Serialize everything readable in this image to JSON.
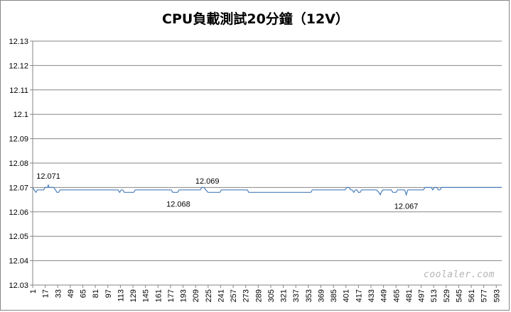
{
  "chart_data": {
    "type": "line",
    "title": "CPU負載測試20分鐘（12V）",
    "xlabel": "",
    "ylabel": "",
    "ylim": [
      12.03,
      12.13
    ],
    "yticks": [
      "12.03",
      "12.04",
      "12.05",
      "12.06",
      "12.07",
      "12.08",
      "12.09",
      "12.1",
      "12.11",
      "12.12",
      "12.13"
    ],
    "xticks": [
      "1",
      "17",
      "33",
      "49",
      "65",
      "81",
      "97",
      "113",
      "129",
      "145",
      "161",
      "177",
      "193",
      "209",
      "225",
      "241",
      "257",
      "273",
      "289",
      "305",
      "321",
      "337",
      "353",
      "369",
      "385",
      "401",
      "417",
      "433",
      "449",
      "465",
      "481",
      "497",
      "513",
      "529",
      "545",
      "561",
      "577",
      "593"
    ],
    "x_max": 600,
    "grid": "horizontal",
    "legend": "none",
    "line_color": "#4a7ebb",
    "series": [
      {
        "points": [
          [
            1,
            12.07
          ],
          [
            3,
            12.069
          ],
          [
            5,
            12.068
          ],
          [
            7,
            12.069
          ],
          [
            15,
            12.069
          ],
          [
            17,
            12.07
          ],
          [
            20,
            12.07
          ],
          [
            21,
            12.071
          ],
          [
            22,
            12.07
          ],
          [
            28,
            12.07
          ],
          [
            30,
            12.069
          ],
          [
            32,
            12.068
          ],
          [
            34,
            12.068
          ],
          [
            36,
            12.069
          ],
          [
            110,
            12.069
          ],
          [
            112,
            12.068
          ],
          [
            114,
            12.069
          ],
          [
            116,
            12.069
          ],
          [
            118,
            12.068
          ],
          [
            130,
            12.068
          ],
          [
            132,
            12.069
          ],
          [
            178,
            12.069
          ],
          [
            180,
            12.068
          ],
          [
            186,
            12.068
          ],
          [
            188,
            12.069
          ],
          [
            215,
            12.069
          ],
          [
            217,
            12.07
          ],
          [
            220,
            12.07
          ],
          [
            222,
            12.069
          ],
          [
            225,
            12.068
          ],
          [
            240,
            12.068
          ],
          [
            242,
            12.069
          ],
          [
            275,
            12.069
          ],
          [
            277,
            12.068
          ],
          [
            356,
            12.068
          ],
          [
            358,
            12.069
          ],
          [
            400,
            12.069
          ],
          [
            402,
            12.07
          ],
          [
            405,
            12.07
          ],
          [
            407,
            12.069
          ],
          [
            409,
            12.069
          ],
          [
            411,
            12.068
          ],
          [
            413,
            12.069
          ],
          [
            415,
            12.069
          ],
          [
            417,
            12.068
          ],
          [
            419,
            12.068
          ],
          [
            421,
            12.069
          ],
          [
            440,
            12.069
          ],
          [
            443,
            12.068
          ],
          [
            445,
            12.067
          ],
          [
            446,
            12.068
          ],
          [
            448,
            12.069
          ],
          [
            459,
            12.069
          ],
          [
            461,
            12.068
          ],
          [
            465,
            12.068
          ],
          [
            467,
            12.069
          ],
          [
            476,
            12.069
          ],
          [
            477,
            12.068
          ],
          [
            478,
            12.067
          ],
          [
            479,
            12.068
          ],
          [
            480,
            12.069
          ],
          [
            500,
            12.069
          ],
          [
            502,
            12.07
          ],
          [
            510,
            12.07
          ],
          [
            512,
            12.069
          ],
          [
            514,
            12.07
          ],
          [
            517,
            12.07
          ],
          [
            519,
            12.069
          ],
          [
            521,
            12.069
          ],
          [
            523,
            12.07
          ],
          [
            600,
            12.07
          ]
        ]
      }
    ],
    "annotations": [
      {
        "text": "12.071",
        "x": 21,
        "y": 12.071
      },
      {
        "text": "12.069",
        "x": 224,
        "y": 12.069
      },
      {
        "text": "12.068",
        "x": 187,
        "y": 12.068
      },
      {
        "text": "12.067",
        "x": 478,
        "y": 12.067
      }
    ],
    "watermark": "coolaler.com"
  }
}
